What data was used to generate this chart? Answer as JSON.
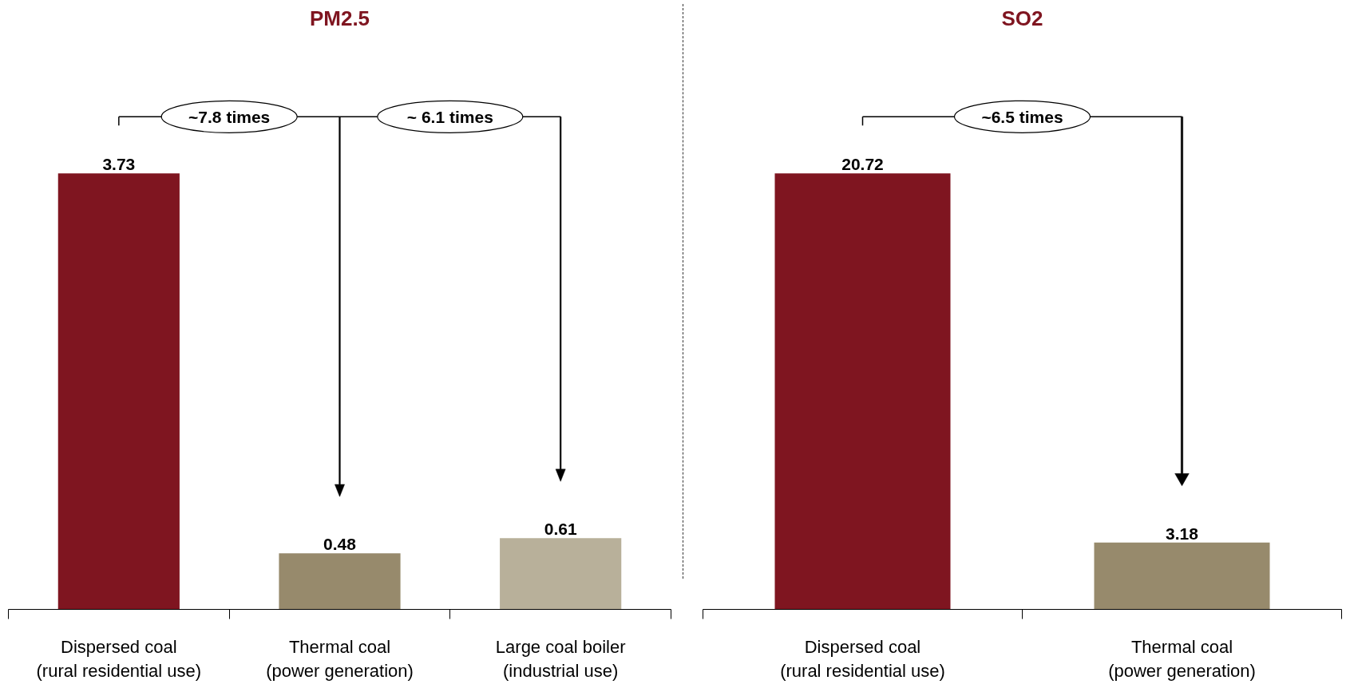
{
  "chart_data": [
    {
      "type": "bar",
      "title": "PM2.5",
      "categories": [
        "Dispersed coal\n(rural residential use)",
        "Thermal coal\n(power generation)",
        "Large coal boiler\n(industrial use)"
      ],
      "values": [
        3.73,
        0.48,
        0.61
      ],
      "colors": [
        "#7f1520",
        "#978a6c",
        "#b8b09a"
      ],
      "data_labels": true,
      "annotations": [
        "~7.8 times",
        "~ 6.1 times"
      ]
    },
    {
      "type": "bar",
      "title": "SO2",
      "categories": [
        "Dispersed coal\n(rural residential use)",
        "Thermal coal\n(power generation)"
      ],
      "values": [
        20.72,
        3.18
      ],
      "colors": [
        "#7f1520",
        "#978a6c"
      ],
      "data_labels": true,
      "annotations": [
        "~6.5 times"
      ]
    }
  ]
}
